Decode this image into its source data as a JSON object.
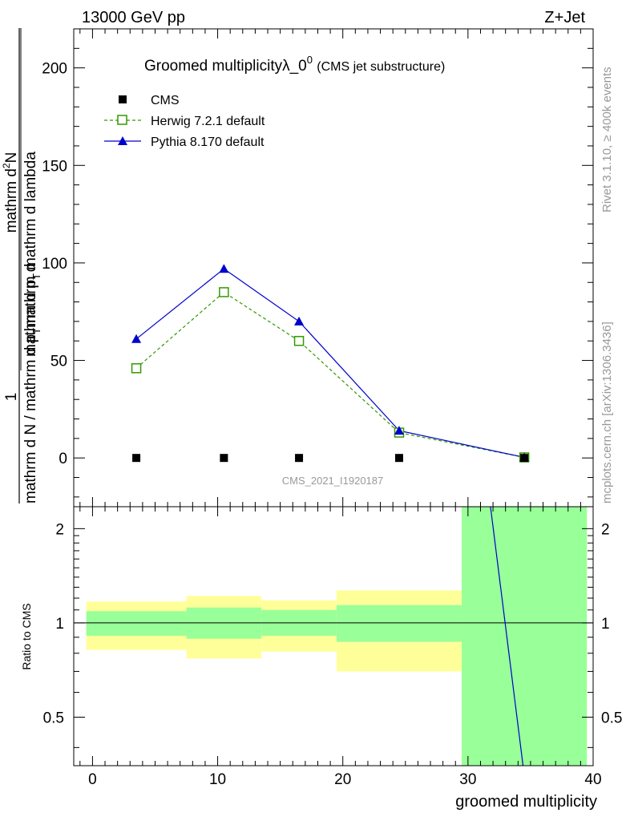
{
  "header": {
    "left": "13000 GeV pp",
    "right": "Z+Jet"
  },
  "side_labels": {
    "rivet": "Rivet 3.1.10, ≥ 400k events",
    "mcplots": "mcplots.cern.ch [arXiv:1306.3436]"
  },
  "watermark": "CMS_2021_I1920187",
  "colors": {
    "herwig": "#339900",
    "pythia": "#0000cc",
    "cms": "#000000",
    "band_inner": "#99ff99",
    "band_outer": "#ffff99"
  },
  "chart_data": [
    {
      "type": "line",
      "title_main": "Groomed multiplicityλ_0",
      "title_sup": "0",
      "title_sub": "(CMS jet substructure)",
      "ylabel_num": "1",
      "ylabel_den_a": "mathrm d N / mathrm d p",
      "ylabel_den_b": "mathrm d p",
      "ylabel_den_c": "mathrm d p",
      "ylabel_den_d": "mathrm d lambda",
      "ylabel_den_sub": "T",
      "ylabel_num_a": "mathrm d",
      "ylabel_num_b": "N",
      "ylabel_num_sup": "2",
      "ylabel_den_mid": "mathrm d",
      "ylim": [
        -25,
        220
      ],
      "yticks": [
        0,
        50,
        100,
        150,
        200
      ],
      "xlim": [
        -1.5,
        40
      ],
      "legend": [
        {
          "name": "CMS",
          "marker": "square-filled"
        },
        {
          "name": "Herwig 7.2.1 default",
          "marker": "square-open"
        },
        {
          "name": "Pythia 8.170 default",
          "marker": "triangle"
        }
      ],
      "series": [
        {
          "name": "CMS",
          "x": [
            3.5,
            10.5,
            16.5,
            24.5,
            34.5
          ],
          "y": [
            0,
            0,
            0,
            0,
            0
          ]
        },
        {
          "name": "Herwig 7.2.1 default",
          "x": [
            3.5,
            10.5,
            16.5,
            24.5,
            34.5
          ],
          "y": [
            46,
            85,
            60,
            13,
            0.3
          ]
        },
        {
          "name": "Pythia 8.170 default",
          "x": [
            3.5,
            10.5,
            16.5,
            24.5,
            34.5
          ],
          "y": [
            61,
            97,
            70,
            14,
            0.3
          ],
          "yerr": [
            0.8,
            1.6,
            1.0,
            0.5,
            0
          ]
        }
      ]
    },
    {
      "type": "area",
      "ylabel": "Ratio to CMS",
      "xlabel": "groomed multiplicity",
      "ylim": [
        0.35,
        2.35
      ],
      "yticks": [
        0.5,
        1,
        2
      ],
      "ytick_labels": [
        "0.5",
        "1",
        "2"
      ],
      "xticks": [
        0,
        10,
        20,
        30,
        40
      ],
      "xlim": [
        -1.5,
        40
      ],
      "bands": [
        {
          "x0": -0.5,
          "x1": 7.5,
          "inner": [
            0.91,
            1.09
          ],
          "outer": [
            0.82,
            1.17
          ]
        },
        {
          "x0": 7.5,
          "x1": 13.5,
          "inner": [
            0.89,
            1.12
          ],
          "outer": [
            0.77,
            1.22
          ]
        },
        {
          "x0": 13.5,
          "x1": 19.5,
          "inner": [
            0.91,
            1.1
          ],
          "outer": [
            0.81,
            1.18
          ]
        },
        {
          "x0": 19.5,
          "x1": 29.5,
          "inner": [
            0.87,
            1.14
          ],
          "outer": [
            0.7,
            1.27
          ]
        },
        {
          "x0": 29.5,
          "x1": 39.5,
          "inner": [
            0.35,
            2.35
          ],
          "outer": [
            0.35,
            2.35
          ]
        }
      ],
      "series": [
        {
          "name": "Pythia 8.170 ratio",
          "x": [
            31.8,
            34.4
          ],
          "y": [
            2.35,
            0.35
          ]
        }
      ]
    }
  ]
}
